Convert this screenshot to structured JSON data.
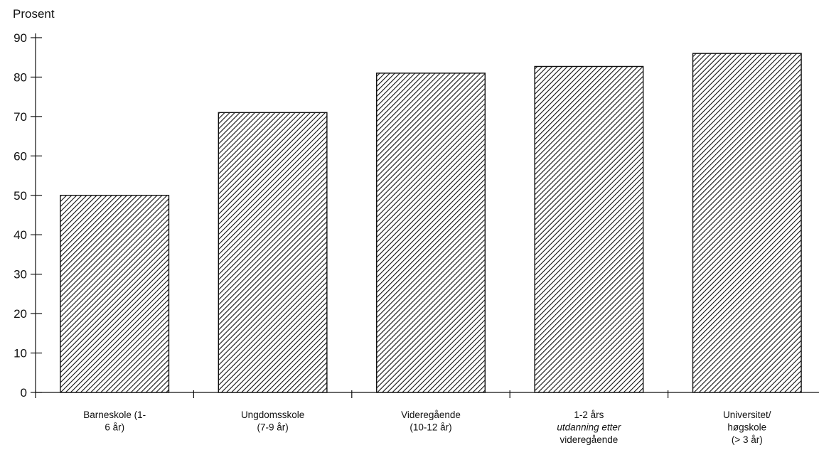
{
  "chart_data": {
    "type": "bar",
    "title": "",
    "ylabel": "Prosent",
    "xlabel": "",
    "ylim": [
      0,
      90
    ],
    "yticks": [
      0,
      10,
      20,
      30,
      40,
      50,
      60,
      70,
      80,
      90
    ],
    "grid": false,
    "legend": "none",
    "bar_fill": "diagonal-hatch",
    "categories": [
      [
        "Barneskole (1-",
        "6 år)"
      ],
      [
        "Ungdomsskole",
        "(7-9 år)"
      ],
      [
        "Videregående",
        "(10-12 år)"
      ],
      [
        "1-2 års",
        "utdanning etter",
        "videregående"
      ],
      [
        "Universitet/",
        "høgskole",
        "(> 3 år)"
      ]
    ],
    "category_italic_lines": [
      [],
      [],
      [],
      [
        1
      ],
      []
    ],
    "values": [
      50,
      71,
      81,
      82.7,
      86
    ]
  },
  "colors": {
    "ink": "#111111",
    "background": "#ffffff"
  }
}
